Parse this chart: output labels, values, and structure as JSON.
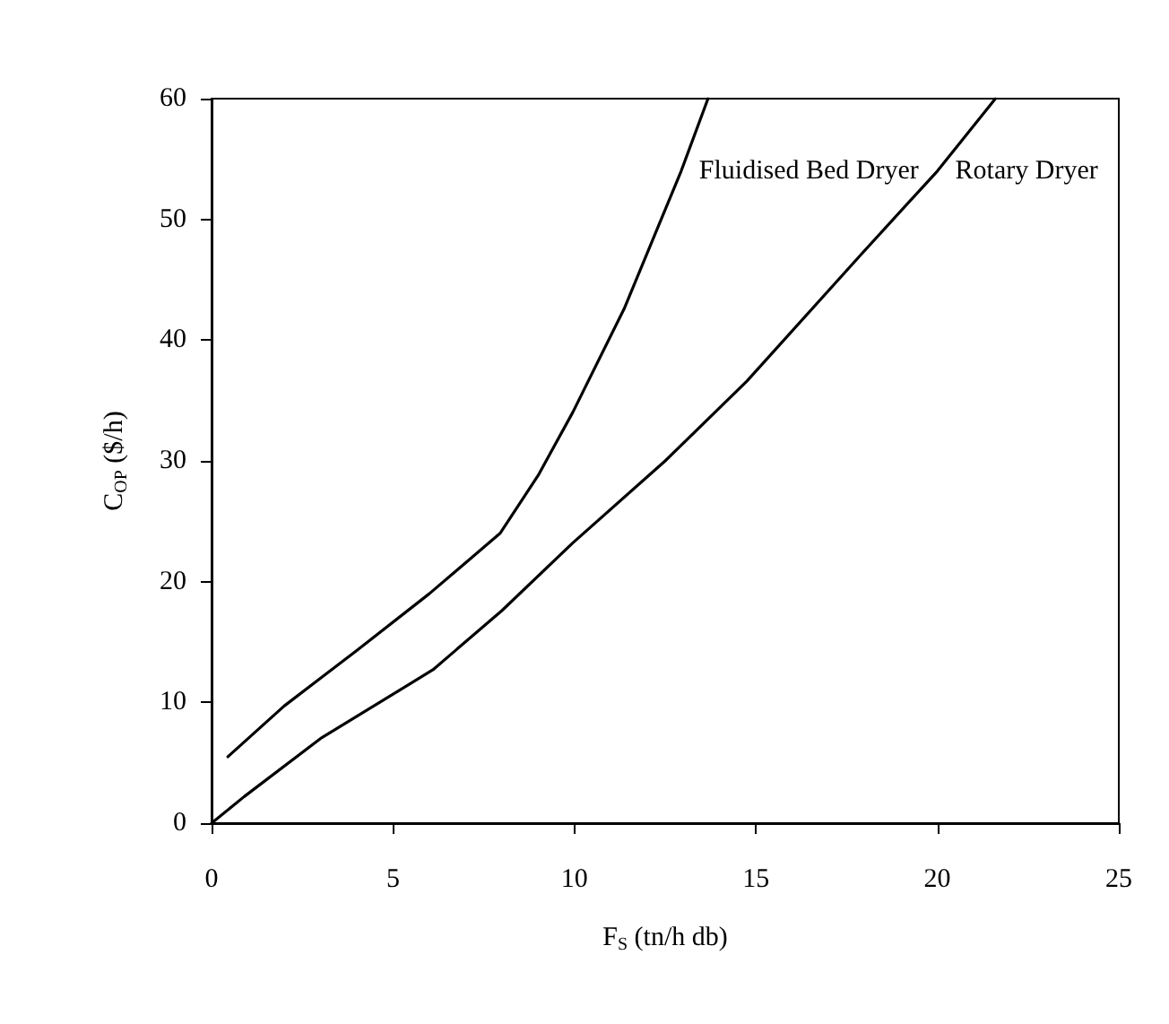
{
  "chart_data": {
    "type": "line",
    "xlabel": "F$_{S}$ (tn/h db)",
    "ylabel": "C$_{OP}$ ($/h)",
    "xlim": [
      0,
      25
    ],
    "xticks": [
      0,
      5,
      10,
      15,
      20,
      25
    ],
    "ylim": [
      0,
      60
    ],
    "yticks": [
      0,
      10,
      20,
      30,
      40,
      50,
      60
    ],
    "grid": false,
    "marker": "none",
    "line_style": "solid",
    "series": [
      {
        "name": "Fluidised Bed Dryer",
        "color": "#000000",
        "x": [
          0.45,
          2,
          4,
          6,
          7.95,
          9,
          9.95,
          11.37,
          12.94,
          13.68
        ],
        "values": [
          5.5,
          9.7,
          14.3,
          19,
          24,
          28.8,
          34,
          42.6,
          54,
          60
        ]
      },
      {
        "name": "Rotary Dryer",
        "color": "#000000",
        "x": [
          0,
          0.9,
          3,
          6.1,
          8,
          9.95,
          12.5,
          14.75,
          17.9,
          20,
          21.6
        ],
        "values": [
          0,
          2.2,
          7,
          12.7,
          17.6,
          23.2,
          30,
          36.6,
          47.1,
          54,
          60
        ]
      }
    ]
  }
}
